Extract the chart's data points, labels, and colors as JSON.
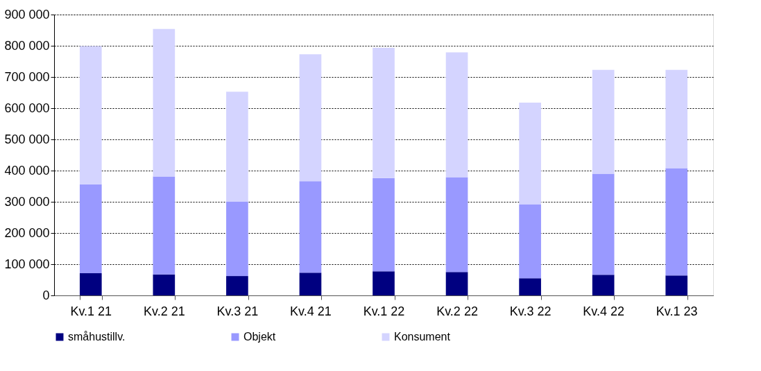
{
  "chart_data": {
    "type": "bar",
    "stacked": true,
    "categories": [
      "Kv.1 21",
      "Kv.2 21",
      "Kv.3 21",
      "Kv.4 21",
      "Kv.1 22",
      "Kv.2 22",
      "Kv.3 22",
      "Kv.4 22",
      "Kv.1 23"
    ],
    "series": [
      {
        "name": "småhustillv.",
        "color": "#000080",
        "values": [
          71000,
          67000,
          62000,
          73000,
          77000,
          75000,
          55000,
          66000,
          64000
        ]
      },
      {
        "name": "Objekt",
        "color": "#9999ff",
        "values": [
          285000,
          314000,
          239000,
          293000,
          299000,
          304000,
          237000,
          324000,
          344000
        ]
      },
      {
        "name": "Konsument",
        "color": "#d4d4ff",
        "values": [
          443000,
          473000,
          352000,
          407000,
          418000,
          400000,
          326000,
          333000,
          315000
        ]
      }
    ],
    "ylim": [
      0,
      900000
    ],
    "yticks": [
      0,
      {
        "value": 100000,
        "label": "100 000"
      },
      {
        "value": 200000,
        "label": "200 000"
      },
      {
        "value": 300000,
        "label": "300 000"
      },
      {
        "value": 400000,
        "label": "400 000"
      },
      {
        "value": 500000,
        "label": "500 000"
      },
      {
        "value": 600000,
        "label": "600 000"
      },
      {
        "value": 700000,
        "label": "700 000"
      },
      {
        "value": 800000,
        "label": "800 000"
      },
      {
        "value": 900000,
        "label": "900 000"
      }
    ],
    "grid": "y",
    "legend": "bottom"
  }
}
